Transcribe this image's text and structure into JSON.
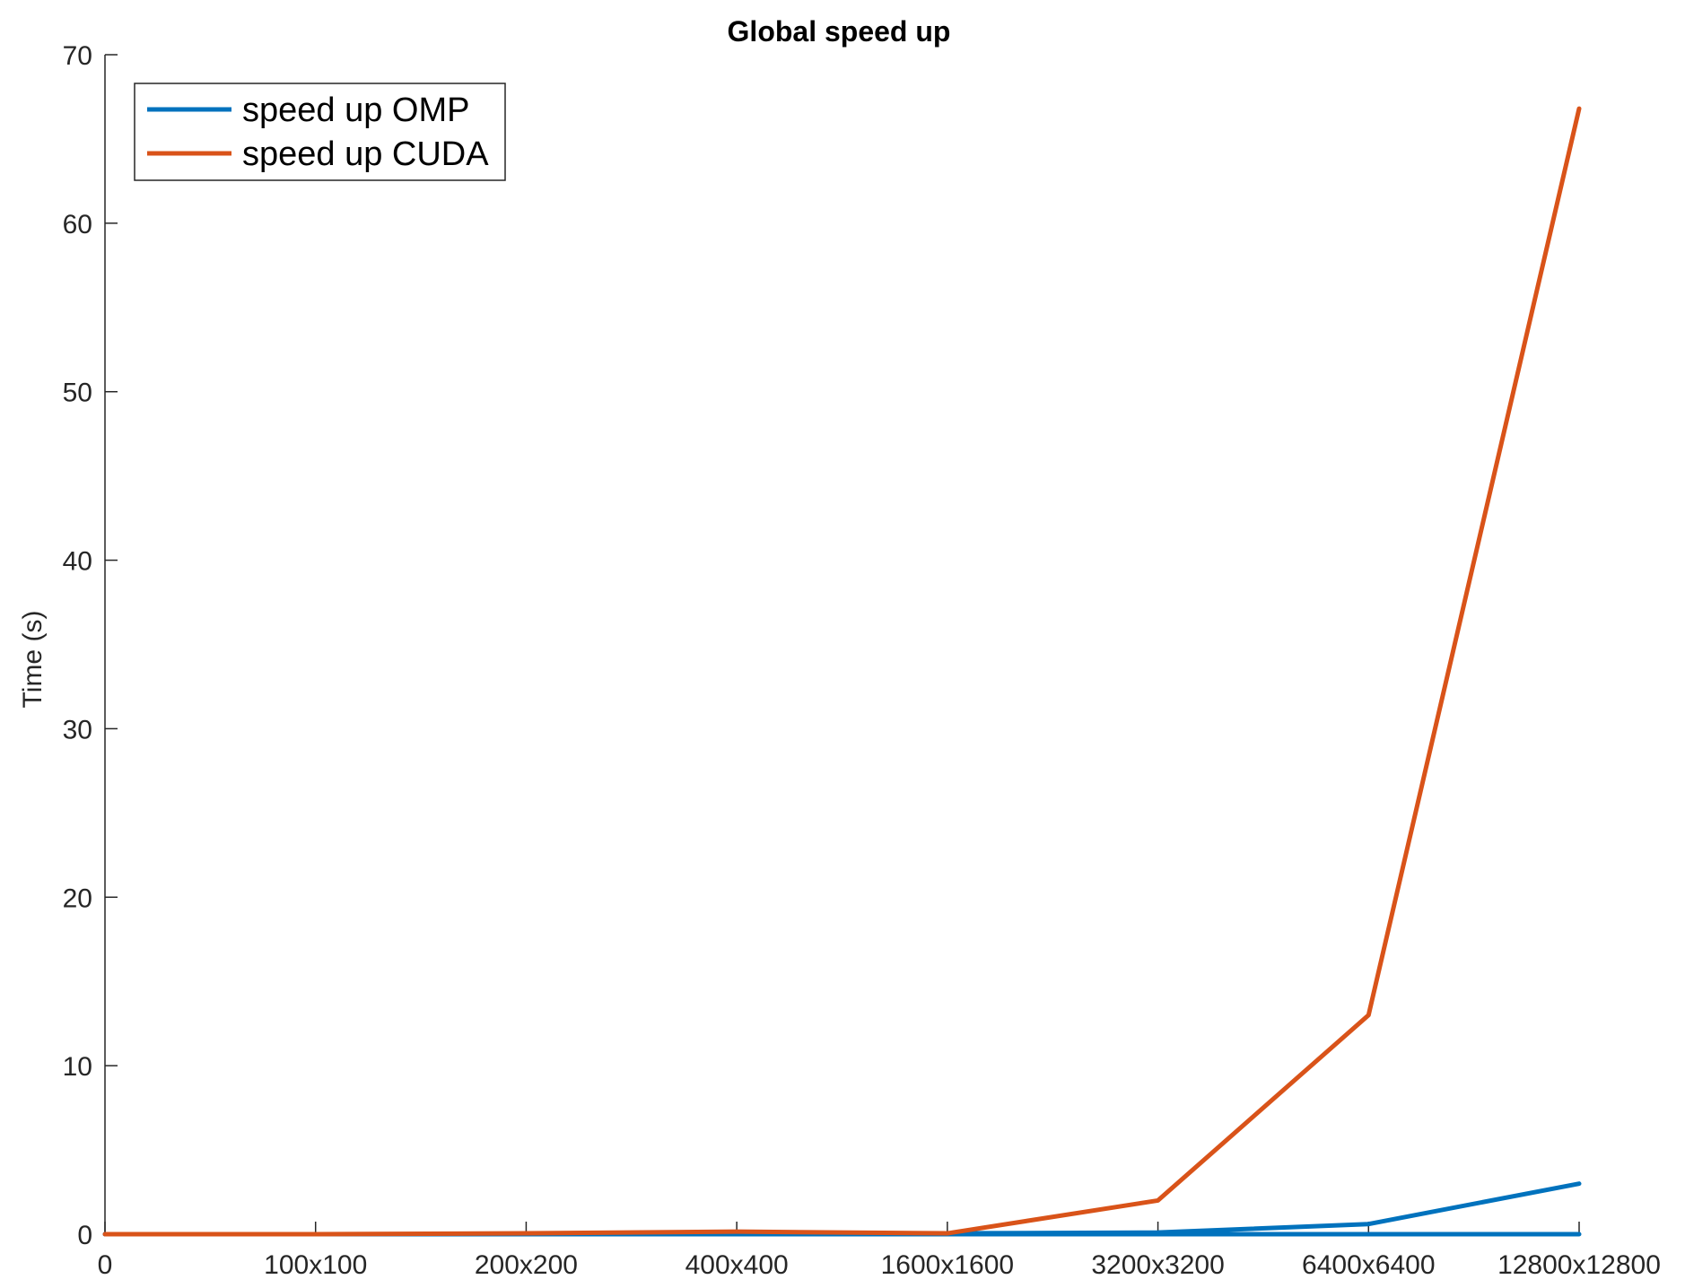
{
  "chart_data": {
    "type": "line",
    "title": "Global speed up",
    "xlabel": "",
    "ylabel": "Time (s)",
    "categories": [
      "0",
      "100x100",
      "200x200",
      "400x400",
      "1600x1600",
      "3200x3200",
      "6400x6400",
      "12800x12800"
    ],
    "ylim": [
      0,
      70
    ],
    "yticks": [
      0,
      10,
      20,
      30,
      40,
      50,
      60,
      70
    ],
    "grid": false,
    "legend_position": "top-left",
    "series": [
      {
        "name": "speed up OMP",
        "color": "#0072BD",
        "values": [
          0,
          0,
          0,
          0.05,
          0.05,
          0.1,
          0.6,
          3.0
        ],
        "extra_line_values": [
          0,
          0,
          0,
          0,
          0,
          0,
          0,
          0
        ]
      },
      {
        "name": "speed up CUDA",
        "color": "#D95319",
        "values": [
          0,
          0,
          0.05,
          0.15,
          0.05,
          2.0,
          13.0,
          66.8
        ]
      }
    ]
  }
}
